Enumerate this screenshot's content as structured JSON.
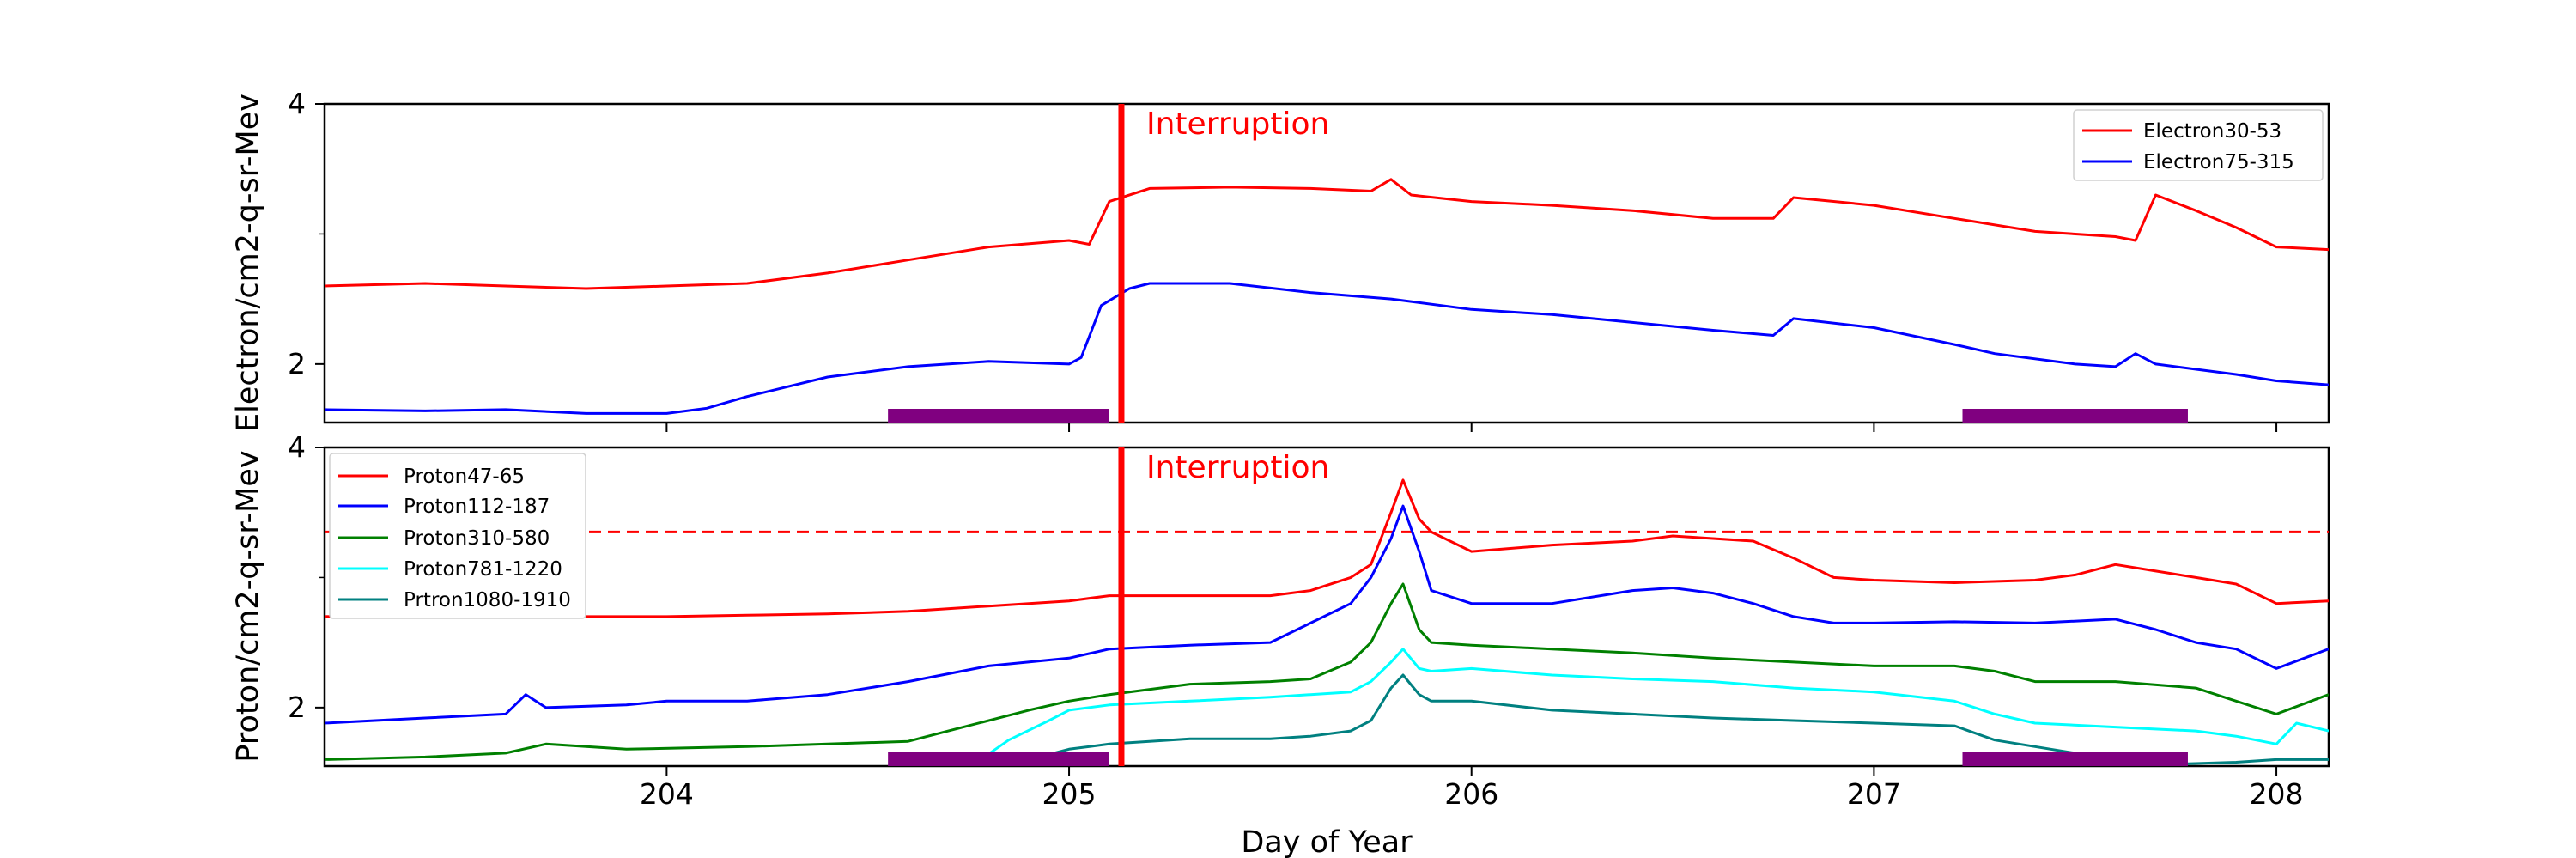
{
  "chart_data": [
    {
      "type": "line",
      "panel": "top",
      "ylabel": "Electron/cm2-q-sr-Mev",
      "xlim": [
        203.15,
        208.13
      ],
      "ylim": [
        1.55,
        4.0
      ],
      "y_ticks": [
        {
          "value": 2,
          "label": "2"
        },
        {
          "value": 4,
          "label": "4"
        }
      ],
      "y_minor_ticks": [
        3
      ],
      "x_ticks": [
        204,
        205,
        206,
        207,
        208
      ],
      "legend_position": "top-right",
      "annotation": {
        "text": "Interruption",
        "x": 205.13,
        "color": "#ff0000"
      },
      "shaded_intervals": [
        {
          "start": 204.55,
          "end": 205.1,
          "color": "#800080"
        },
        {
          "start": 207.22,
          "end": 207.78,
          "color": "#800080"
        }
      ],
      "series": [
        {
          "name": "Electron30-53",
          "color": "#ff0000",
          "x": [
            203.15,
            203.4,
            203.6,
            203.8,
            204.0,
            204.2,
            204.4,
            204.6,
            204.8,
            205.0,
            205.05,
            205.1,
            205.2,
            205.4,
            205.6,
            205.75,
            205.8,
            205.85,
            206.0,
            206.2,
            206.4,
            206.6,
            206.75,
            206.8,
            207.0,
            207.2,
            207.4,
            207.6,
            207.65,
            207.7,
            207.8,
            207.9,
            208.0,
            208.13
          ],
          "y": [
            2.6,
            2.62,
            2.6,
            2.58,
            2.6,
            2.62,
            2.7,
            2.8,
            2.9,
            2.95,
            2.92,
            3.25,
            3.35,
            3.36,
            3.35,
            3.33,
            3.42,
            3.3,
            3.25,
            3.22,
            3.18,
            3.12,
            3.12,
            3.28,
            3.22,
            3.12,
            3.02,
            2.98,
            2.95,
            3.3,
            3.18,
            3.05,
            2.9,
            2.88
          ]
        },
        {
          "name": "Electron75-315",
          "color": "#0000ff",
          "x": [
            203.15,
            203.4,
            203.6,
            203.8,
            204.0,
            204.1,
            204.2,
            204.4,
            204.6,
            204.8,
            205.0,
            205.03,
            205.08,
            205.15,
            205.2,
            205.4,
            205.6,
            205.8,
            206.0,
            206.2,
            206.4,
            206.6,
            206.75,
            206.8,
            207.0,
            207.2,
            207.3,
            207.5,
            207.6,
            207.65,
            207.7,
            207.9,
            208.0,
            208.13
          ],
          "y": [
            1.65,
            1.64,
            1.65,
            1.62,
            1.62,
            1.66,
            1.75,
            1.9,
            1.98,
            2.02,
            2.0,
            2.05,
            2.45,
            2.58,
            2.62,
            2.62,
            2.55,
            2.5,
            2.42,
            2.38,
            2.32,
            2.26,
            2.22,
            2.35,
            2.28,
            2.15,
            2.08,
            2.0,
            1.98,
            2.08,
            2.0,
            1.92,
            1.87,
            1.84
          ]
        }
      ]
    },
    {
      "type": "line",
      "panel": "bottom",
      "ylabel": "Proton/cm2-q-sr-Mev",
      "xlabel": "Day of Year",
      "xlim": [
        203.15,
        208.13
      ],
      "ylim": [
        1.55,
        4.0
      ],
      "y_ticks": [
        {
          "value": 2,
          "label": "2"
        },
        {
          "value": 4,
          "label": "4"
        }
      ],
      "y_minor_ticks": [
        3
      ],
      "x_ticks": [
        204,
        205,
        206,
        207,
        208
      ],
      "legend_position": "top-left",
      "threshold": {
        "value": 3.35,
        "color": "#ff0000",
        "style": "dashed"
      },
      "annotation": {
        "text": "Interruption",
        "x": 205.13,
        "color": "#ff0000"
      },
      "shaded_intervals": [
        {
          "start": 204.55,
          "end": 205.1,
          "color": "#800080"
        },
        {
          "start": 207.22,
          "end": 207.78,
          "color": "#800080"
        }
      ],
      "series": [
        {
          "name": "Proton47-65",
          "color": "#ff0000",
          "x": [
            203.15,
            203.4,
            203.6,
            203.8,
            204.0,
            204.2,
            204.4,
            204.6,
            204.8,
            205.0,
            205.1,
            205.3,
            205.5,
            205.6,
            205.7,
            205.75,
            205.8,
            205.83,
            205.87,
            205.9,
            206.0,
            206.2,
            206.4,
            206.5,
            206.6,
            206.7,
            206.8,
            206.9,
            207.0,
            207.2,
            207.4,
            207.5,
            207.6,
            207.7,
            207.8,
            207.9,
            208.0,
            208.13
          ],
          "y": [
            2.7,
            2.72,
            2.7,
            2.7,
            2.7,
            2.71,
            2.72,
            2.74,
            2.78,
            2.82,
            2.86,
            2.86,
            2.86,
            2.9,
            3.0,
            3.1,
            3.5,
            3.75,
            3.45,
            3.35,
            3.2,
            3.25,
            3.28,
            3.32,
            3.3,
            3.28,
            3.15,
            3.0,
            2.98,
            2.96,
            2.98,
            3.02,
            3.1,
            3.05,
            3.0,
            2.95,
            2.8,
            2.82
          ]
        },
        {
          "name": "Proton112-187",
          "color": "#0000ff",
          "x": [
            203.15,
            203.4,
            203.6,
            203.65,
            203.7,
            203.9,
            204.0,
            204.2,
            204.4,
            204.6,
            204.8,
            205.0,
            205.1,
            205.3,
            205.5,
            205.6,
            205.7,
            205.75,
            205.8,
            205.83,
            205.87,
            205.9,
            206.0,
            206.2,
            206.4,
            206.5,
            206.6,
            206.7,
            206.8,
            206.9,
            207.0,
            207.2,
            207.4,
            207.6,
            207.7,
            207.8,
            207.9,
            208.0,
            208.13
          ],
          "y": [
            1.88,
            1.92,
            1.95,
            2.1,
            2.0,
            2.02,
            2.05,
            2.05,
            2.1,
            2.2,
            2.32,
            2.38,
            2.45,
            2.48,
            2.5,
            2.65,
            2.8,
            3.0,
            3.3,
            3.55,
            3.2,
            2.9,
            2.8,
            2.8,
            2.9,
            2.92,
            2.88,
            2.8,
            2.7,
            2.65,
            2.65,
            2.66,
            2.65,
            2.68,
            2.6,
            2.5,
            2.45,
            2.3,
            2.45
          ]
        },
        {
          "name": "Proton310-580",
          "color": "#008000",
          "x": [
            203.15,
            203.4,
            203.6,
            203.7,
            203.9,
            204.2,
            204.4,
            204.6,
            204.7,
            204.9,
            205.0,
            205.1,
            205.3,
            205.5,
            205.6,
            205.7,
            205.75,
            205.8,
            205.83,
            205.87,
            205.9,
            206.0,
            206.2,
            206.4,
            206.5,
            206.6,
            206.8,
            207.0,
            207.2,
            207.3,
            207.4,
            207.6,
            207.8,
            207.9,
            208.0,
            208.13
          ],
          "y": [
            1.6,
            1.62,
            1.65,
            1.72,
            1.68,
            1.7,
            1.72,
            1.74,
            1.82,
            1.98,
            2.05,
            2.1,
            2.18,
            2.2,
            2.22,
            2.35,
            2.5,
            2.8,
            2.95,
            2.6,
            2.5,
            2.48,
            2.45,
            2.42,
            2.4,
            2.38,
            2.35,
            2.32,
            2.32,
            2.28,
            2.2,
            2.2,
            2.15,
            2.05,
            1.95,
            2.1
          ]
        },
        {
          "name": "Proton781-1220",
          "color": "#00ffff",
          "x": [
            204.78,
            204.85,
            204.95,
            205.0,
            205.1,
            205.3,
            205.5,
            205.6,
            205.7,
            205.75,
            205.8,
            205.83,
            205.87,
            205.9,
            206.0,
            206.2,
            206.4,
            206.6,
            206.8,
            207.0,
            207.2,
            207.3,
            207.4,
            207.6,
            207.8,
            207.9,
            208.0,
            208.05,
            208.13
          ],
          "y": [
            1.6,
            1.75,
            1.9,
            1.98,
            2.02,
            2.05,
            2.08,
            2.1,
            2.12,
            2.2,
            2.35,
            2.45,
            2.3,
            2.28,
            2.3,
            2.25,
            2.22,
            2.2,
            2.15,
            2.12,
            2.05,
            1.95,
            1.88,
            1.85,
            1.82,
            1.78,
            1.72,
            1.88,
            1.82
          ]
        },
        {
          "name": "Prtron1080-1910",
          "color": "#008080",
          "x": [
            204.9,
            205.0,
            205.1,
            205.3,
            205.5,
            205.6,
            205.7,
            205.75,
            205.8,
            205.83,
            205.87,
            205.9,
            206.0,
            206.2,
            206.4,
            206.6,
            206.8,
            207.0,
            207.2,
            207.3,
            207.4,
            207.5,
            207.6,
            207.7,
            207.9,
            208.0,
            208.13
          ],
          "y": [
            1.6,
            1.68,
            1.72,
            1.76,
            1.76,
            1.78,
            1.82,
            1.9,
            2.15,
            2.25,
            2.1,
            2.05,
            2.05,
            1.98,
            1.95,
            1.92,
            1.9,
            1.88,
            1.86,
            1.75,
            1.7,
            1.65,
            1.6,
            1.56,
            1.58,
            1.6,
            1.6
          ]
        }
      ]
    }
  ]
}
